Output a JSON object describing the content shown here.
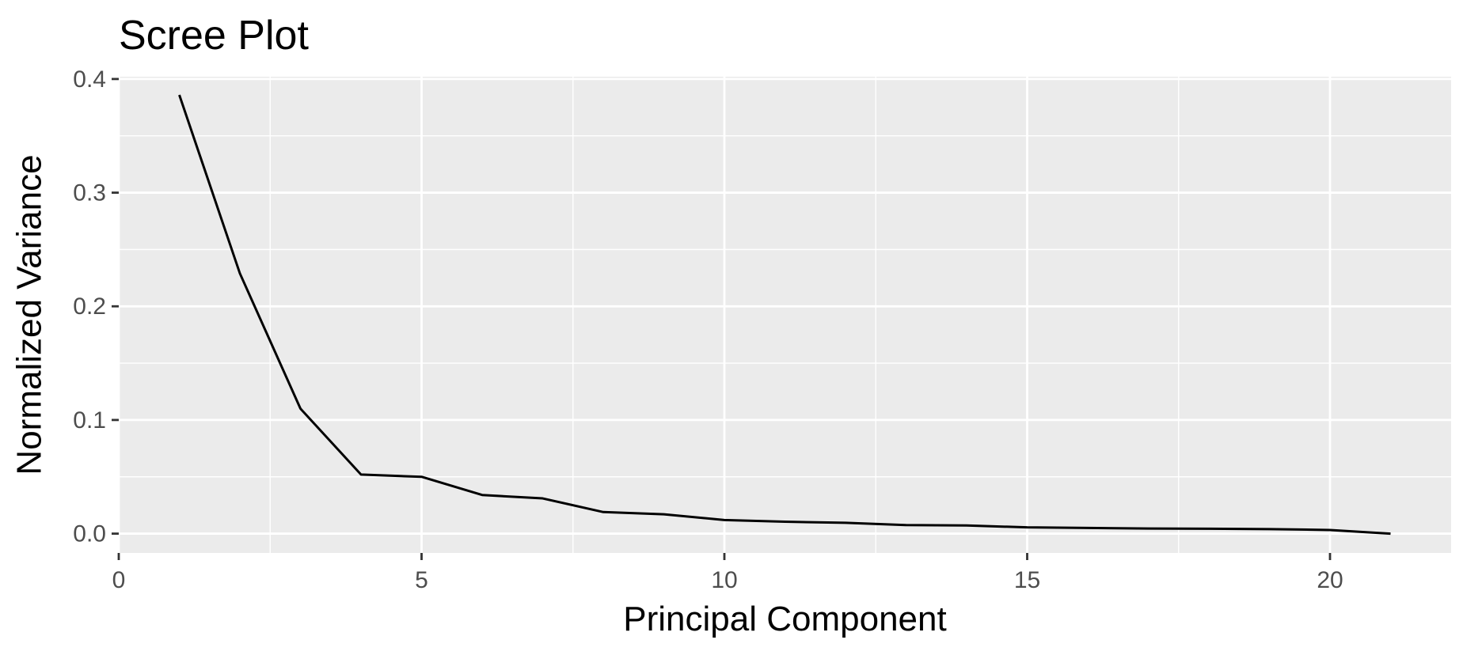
{
  "chart_data": {
    "type": "line",
    "title": "Scree Plot",
    "xlabel": "Principal Component",
    "ylabel": "Normalized Variance",
    "x": [
      1,
      2,
      3,
      4,
      5,
      6,
      7,
      8,
      9,
      10,
      11,
      12,
      13,
      14,
      15,
      16,
      17,
      18,
      19,
      20,
      21
    ],
    "series": [
      {
        "values": [
          0.386,
          0.229,
          0.11,
          0.052,
          0.05,
          0.034,
          0.031,
          0.019,
          0.017,
          0.012,
          0.0105,
          0.0095,
          0.0075,
          0.0072,
          0.0055,
          0.005,
          0.0045,
          0.0043,
          0.004,
          0.0032,
          0.0
        ]
      }
    ],
    "xlim": [
      0,
      22.0
    ],
    "ylim": [
      -0.017,
      0.402
    ],
    "xticks": [
      0,
      5,
      10,
      15,
      20
    ],
    "xtick_labels": [
      "0",
      "5",
      "10",
      "15",
      "20"
    ],
    "yticks": [
      0.0,
      0.1,
      0.2,
      0.3,
      0.4
    ],
    "ytick_labels": [
      "0.0",
      "0.1",
      "0.2",
      "0.3",
      "0.4"
    ],
    "x_minor": [
      2.5,
      7.5,
      12.5,
      17.5
    ],
    "y_minor": [
      0.05,
      0.15,
      0.25,
      0.35
    ],
    "grid": true,
    "legend": "none",
    "colors": {
      "panel_background": "#ebebeb",
      "grid": "#ffffff",
      "line": "#000000",
      "tick_label": "#4d4d4d",
      "axis_tick": "#333333"
    }
  }
}
